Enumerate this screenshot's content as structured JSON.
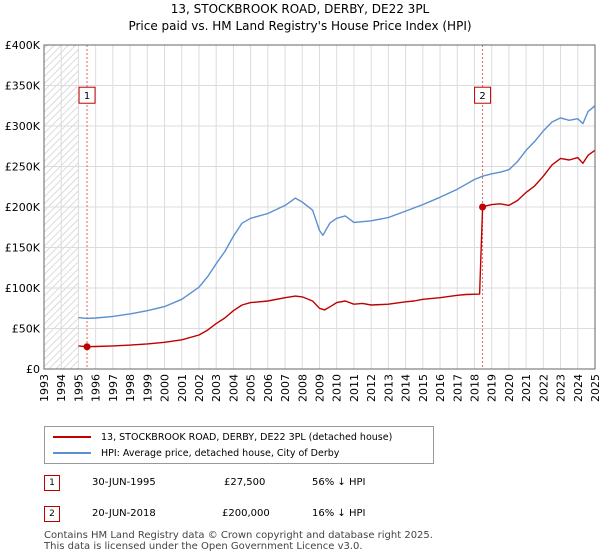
{
  "header": {
    "title_line1": "13, STOCKBROOK ROAD, DERBY, DE22 3PL",
    "title_line2": "Price paid vs. HM Land Registry's House Price Index (HPI)"
  },
  "chart_data": {
    "type": "line",
    "title": "13, STOCKBROOK ROAD, DERBY, DE22 3PL — Price paid vs. HM Land Registry's House Price Index (HPI)",
    "xlim": [
      1993,
      2025
    ],
    "ylim": [
      0,
      400000
    ],
    "xticks": [
      "1993",
      "1994",
      "1995",
      "1996",
      "1997",
      "1998",
      "1999",
      "2000",
      "2001",
      "2002",
      "2003",
      "2004",
      "2005",
      "2006",
      "2007",
      "2008",
      "2009",
      "2010",
      "2011",
      "2012",
      "2013",
      "2014",
      "2015",
      "2016",
      "2017",
      "2018",
      "2019",
      "2020",
      "2021",
      "2022",
      "2023",
      "2024",
      "2025"
    ],
    "yticks": [
      {
        "value": 0,
        "label": "£0"
      },
      {
        "value": 50000,
        "label": "£50K"
      },
      {
        "value": 100000,
        "label": "£100K"
      },
      {
        "value": 150000,
        "label": "£150K"
      },
      {
        "value": 200000,
        "label": "£200K"
      },
      {
        "value": 250000,
        "label": "£250K"
      },
      {
        "value": 300000,
        "label": "£300K"
      },
      {
        "value": 350000,
        "label": "£350K"
      },
      {
        "value": 400000,
        "label": "£400K"
      }
    ],
    "grid": true,
    "pre_data_shaded_until": 1995.0,
    "series": [
      {
        "name": "13, STOCKBROOK ROAD, DERBY, DE22 3PL (detached house)",
        "color": "#c00000",
        "points": [
          [
            1995.0,
            28500
          ],
          [
            1995.5,
            27500
          ],
          [
            1996,
            27800
          ],
          [
            1997,
            28500
          ],
          [
            1998,
            29500
          ],
          [
            1999,
            31000
          ],
          [
            2000,
            33000
          ],
          [
            2001,
            36000
          ],
          [
            2002,
            42000
          ],
          [
            2002.5,
            48000
          ],
          [
            2003,
            56000
          ],
          [
            2003.5,
            63000
          ],
          [
            2004,
            72000
          ],
          [
            2004.5,
            79000
          ],
          [
            2005,
            82000
          ],
          [
            2006,
            84000
          ],
          [
            2007,
            88000
          ],
          [
            2007.6,
            90000
          ],
          [
            2008,
            89000
          ],
          [
            2008.6,
            84000
          ],
          [
            2009.0,
            75000
          ],
          [
            2009.3,
            73000
          ],
          [
            2009.7,
            78000
          ],
          [
            2010,
            82000
          ],
          [
            2010.5,
            84000
          ],
          [
            2011,
            80000
          ],
          [
            2011.5,
            81000
          ],
          [
            2012,
            79000
          ],
          [
            2013,
            80000
          ],
          [
            2014,
            83000
          ],
          [
            2014.5,
            84000
          ],
          [
            2015,
            86000
          ],
          [
            2016,
            88000
          ],
          [
            2017,
            91000
          ],
          [
            2017.5,
            92000
          ],
          [
            2018.3,
            92500
          ],
          [
            2018.47,
            200000
          ],
          [
            2018.6,
            201000
          ],
          [
            2019,
            203000
          ],
          [
            2019.5,
            204000
          ],
          [
            2020,
            202000
          ],
          [
            2020.5,
            208000
          ],
          [
            2021,
            218000
          ],
          [
            2021.5,
            226000
          ],
          [
            2022,
            238000
          ],
          [
            2022.5,
            252000
          ],
          [
            2023,
            260000
          ],
          [
            2023.5,
            258000
          ],
          [
            2024,
            261000
          ],
          [
            2024.3,
            254000
          ],
          [
            2024.6,
            264000
          ],
          [
            2025,
            270000
          ]
        ]
      },
      {
        "name": "HPI: Average price, detached house, City of Derby",
        "color": "#5b8fd0",
        "points": [
          [
            1995.0,
            63500
          ],
          [
            1995.5,
            62500
          ],
          [
            1996,
            63000
          ],
          [
            1997,
            65000
          ],
          [
            1998,
            68000
          ],
          [
            1999,
            72000
          ],
          [
            2000,
            77000
          ],
          [
            2001,
            86000
          ],
          [
            2002,
            101000
          ],
          [
            2002.5,
            114000
          ],
          [
            2003,
            130000
          ],
          [
            2003.5,
            145000
          ],
          [
            2004,
            164000
          ],
          [
            2004.5,
            180000
          ],
          [
            2005,
            186000
          ],
          [
            2006,
            192000
          ],
          [
            2007,
            202000
          ],
          [
            2007.6,
            211000
          ],
          [
            2008,
            206000
          ],
          [
            2008.6,
            196000
          ],
          [
            2009.0,
            171000
          ],
          [
            2009.2,
            165000
          ],
          [
            2009.6,
            180000
          ],
          [
            2010,
            186000
          ],
          [
            2010.5,
            189000
          ],
          [
            2011,
            181000
          ],
          [
            2012,
            183000
          ],
          [
            2013,
            187000
          ],
          [
            2014,
            195000
          ],
          [
            2015,
            203000
          ],
          [
            2016,
            212000
          ],
          [
            2017,
            222000
          ],
          [
            2018,
            234000
          ],
          [
            2018.47,
            238000
          ],
          [
            2019,
            241000
          ],
          [
            2019.5,
            243000
          ],
          [
            2020,
            246000
          ],
          [
            2020.5,
            256000
          ],
          [
            2021,
            270000
          ],
          [
            2021.5,
            281000
          ],
          [
            2022,
            294000
          ],
          [
            2022.5,
            305000
          ],
          [
            2023,
            310000
          ],
          [
            2023.5,
            307000
          ],
          [
            2024,
            309000
          ],
          [
            2024.3,
            303000
          ],
          [
            2024.6,
            318000
          ],
          [
            2025,
            325000
          ]
        ]
      }
    ],
    "sales": [
      {
        "label": "1",
        "x": 1995.5,
        "price": 27500
      },
      {
        "label": "2",
        "x": 2018.47,
        "price": 200000
      }
    ],
    "marker_boxes_y_value": 338000
  },
  "legend": {
    "items": [
      {
        "label": "13, STOCKBROOK ROAD, DERBY, DE22 3PL (detached house)",
        "color": "#c00000"
      },
      {
        "label": "HPI: Average price, detached house, City of Derby",
        "color": "#5b8fd0"
      }
    ]
  },
  "transactions": [
    {
      "num": "1",
      "date": "30-JUN-1995",
      "price": "£27,500",
      "hpi": "56% ↓ HPI"
    },
    {
      "num": "2",
      "date": "20-JUN-2018",
      "price": "£200,000",
      "hpi": "16% ↓ HPI"
    }
  ],
  "footer": {
    "line1": "Contains HM Land Registry data © Crown copyright and database right 2025.",
    "line2": "This data is licensed under the Open Government Licence v3.0."
  }
}
